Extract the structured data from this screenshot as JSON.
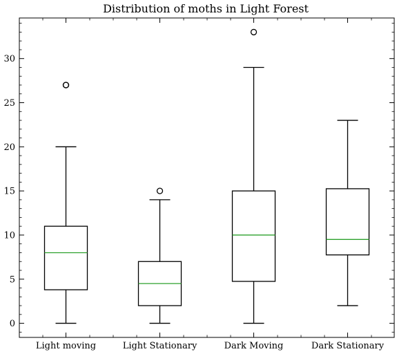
{
  "chart_data": {
    "type": "box",
    "title": "Distribution of moths in Light Forest",
    "xlabel": "",
    "ylabel": "",
    "ylim": [
      -1.6,
      34.6
    ],
    "yticks": [
      0,
      5,
      10,
      15,
      20,
      25,
      30
    ],
    "grid": false,
    "categories": [
      "Light moving",
      "Light Stationary",
      "Dark Moving",
      "Dark Stationary"
    ],
    "boxes": [
      {
        "whisker_low": 0,
        "q1": 3.8,
        "median": 8,
        "q3": 11,
        "whisker_high": 20,
        "outliers": [
          27,
          27
        ]
      },
      {
        "whisker_low": 0,
        "q1": 2,
        "median": 4.5,
        "q3": 7,
        "whisker_high": 14,
        "outliers": [
          15
        ]
      },
      {
        "whisker_low": 0,
        "q1": 4.75,
        "median": 10,
        "q3": 15,
        "whisker_high": 29,
        "outliers": [
          33
        ]
      },
      {
        "whisker_low": 2,
        "q1": 7.75,
        "median": 9.5,
        "q3": 15.25,
        "whisker_high": 23,
        "outliers": []
      }
    ],
    "colors": {
      "box": "#000000",
      "median": "#2ca02c"
    }
  }
}
